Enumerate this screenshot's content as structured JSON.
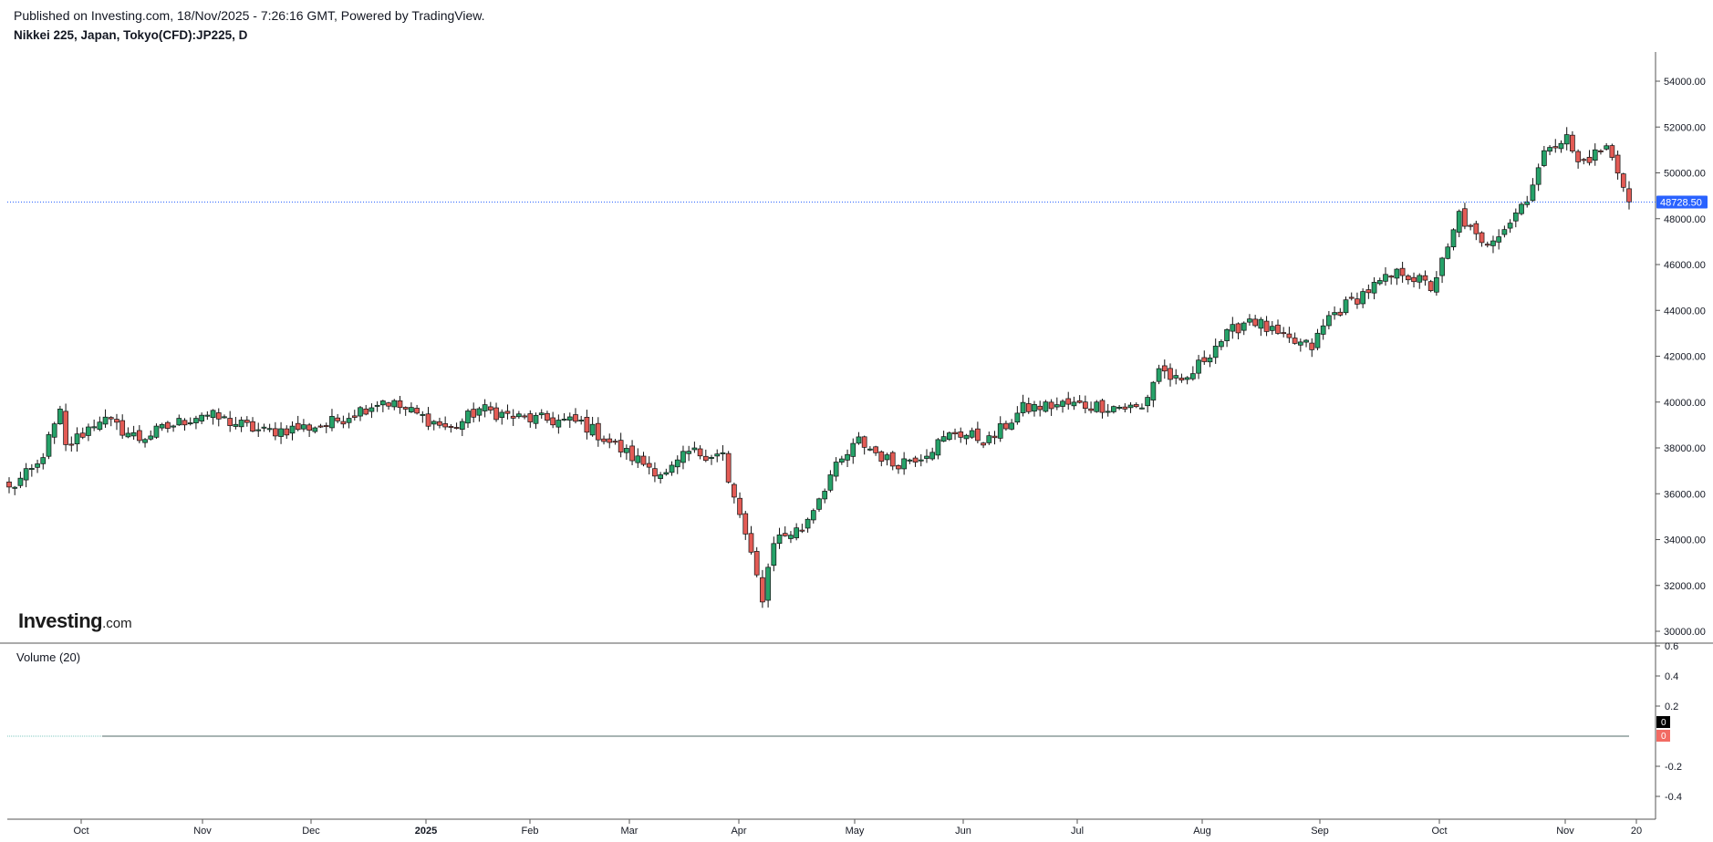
{
  "header": {
    "published": "Published on Investing.com, 18/Nov/2025 - 7:26:16 GMT, Powered by TradingView.",
    "symbol": "Nikkei 225, Japan, Tokyo(CFD):JP225, D"
  },
  "logo": {
    "main": "Investing",
    "suffix": ".com"
  },
  "volume": {
    "label": "Volume (20)",
    "ticks": [
      "0.6",
      "0.4",
      "0.2",
      "-0.2",
      "-0.4"
    ],
    "badges": [
      "0",
      "0"
    ]
  },
  "chart_data": {
    "type": "candlestick",
    "y_ticks": [
      "54000.00",
      "52000.00",
      "50000.00",
      "48000.00",
      "46000.00",
      "44000.00",
      "42000.00",
      "40000.00",
      "38000.00",
      "36000.00",
      "34000.00",
      "32000.00",
      "30000.00"
    ],
    "ylim": [
      29500,
      55200
    ],
    "last_price": 48728.5,
    "last_price_label": "48728.50",
    "x_ticks": [
      {
        "label": "Oct",
        "bold": false
      },
      {
        "label": "Nov",
        "bold": false
      },
      {
        "label": "Dec",
        "bold": false
      },
      {
        "label": "2025",
        "bold": true
      },
      {
        "label": "Feb",
        "bold": false
      },
      {
        "label": "Mar",
        "bold": false
      },
      {
        "label": "Apr",
        "bold": false
      },
      {
        "label": "May",
        "bold": false
      },
      {
        "label": "Jun",
        "bold": false
      },
      {
        "label": "Jul",
        "bold": false
      },
      {
        "label": "Aug",
        "bold": false
      },
      {
        "label": "Sep",
        "bold": false
      },
      {
        "label": "Oct",
        "bold": false
      },
      {
        "label": "Nov",
        "bold": false
      },
      {
        "label": "20",
        "bold": false
      }
    ],
    "anchors": [
      [
        0,
        36200
      ],
      [
        5,
        37200
      ],
      [
        9,
        39500
      ],
      [
        10,
        38000
      ],
      [
        16,
        39300
      ],
      [
        23,
        38400
      ],
      [
        34,
        39500
      ],
      [
        45,
        38700
      ],
      [
        56,
        39000
      ],
      [
        66,
        40100
      ],
      [
        78,
        38800
      ],
      [
        83,
        39700
      ],
      [
        90,
        39300
      ],
      [
        101,
        39100
      ],
      [
        110,
        37600
      ],
      [
        116,
        36800
      ],
      [
        120,
        37800
      ],
      [
        126,
        37700
      ],
      [
        127,
        36400
      ],
      [
        129,
        35100
      ],
      [
        131,
        33200
      ],
      [
        133,
        31500
      ],
      [
        135,
        34000
      ],
      [
        140,
        34500
      ],
      [
        145,
        36800
      ],
      [
        150,
        38300
      ],
      [
        156,
        37300
      ],
      [
        161,
        37700
      ],
      [
        167,
        38700
      ],
      [
        173,
        38300
      ],
      [
        179,
        39700
      ],
      [
        186,
        39900
      ],
      [
        196,
        39800
      ],
      [
        200,
        39700
      ],
      [
        203,
        41500
      ],
      [
        207,
        40700
      ],
      [
        213,
        42500
      ],
      [
        219,
        43700
      ],
      [
        225,
        42700
      ],
      [
        230,
        42400
      ],
      [
        233,
        43700
      ],
      [
        240,
        44900
      ],
      [
        246,
        45700
      ],
      [
        251,
        45000
      ],
      [
        254,
        46600
      ],
      [
        256,
        48200
      ],
      [
        260,
        46800
      ],
      [
        265,
        47900
      ],
      [
        268,
        49000
      ],
      [
        272,
        51300
      ],
      [
        275,
        51500
      ],
      [
        277,
        50400
      ],
      [
        282,
        51100
      ],
      [
        285,
        49600
      ],
      [
        286,
        48728.5
      ]
    ],
    "up_color": "#26a269",
    "down_color": "#e35b55"
  }
}
